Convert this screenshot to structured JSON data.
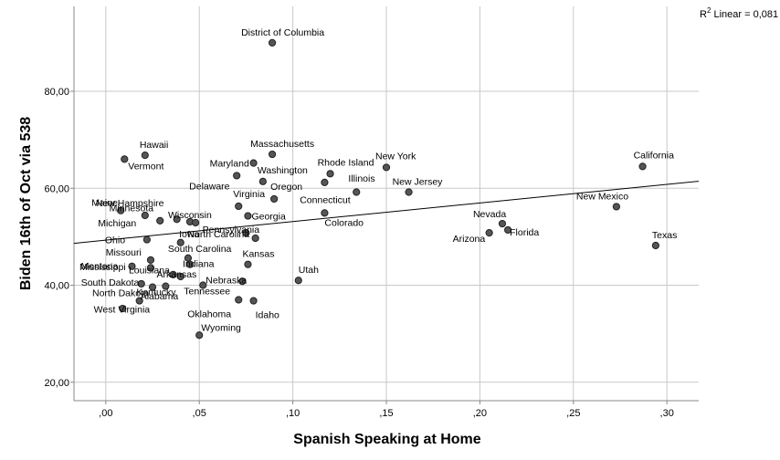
{
  "chart_data": {
    "type": "scatter",
    "title": "",
    "xlabel": "Spanish Speaking at Home",
    "ylabel": "Biden 16th of Oct via 538",
    "xlim": [
      -0.017,
      0.317
    ],
    "ylim": [
      16.2,
      97.5
    ],
    "x_ticks": [
      0.0,
      0.05,
      0.1,
      0.15,
      0.2,
      0.25,
      0.3
    ],
    "x_tick_labels": [
      ",00",
      ",05",
      ",10",
      ",15",
      ",20",
      ",25",
      ",30"
    ],
    "y_ticks": [
      20,
      40,
      60,
      80
    ],
    "y_tick_labels": [
      "20,00",
      "40,00",
      "60,00",
      "80,00"
    ],
    "grid": true,
    "fit_line": {
      "label_prefix": "R",
      "label_sup": "2",
      "label_rest": " Linear = 0,081",
      "intercept": 49.3,
      "slope": 38.3
    },
    "points": [
      {
        "label": "District of Columbia",
        "x": 0.089,
        "y": 90.0
      },
      {
        "label": "Hawaii",
        "x": 0.021,
        "y": 66.8
      },
      {
        "label": "Vermont",
        "x": 0.01,
        "y": 66.0
      },
      {
        "label": "Massachusetts",
        "x": 0.089,
        "y": 67.0
      },
      {
        "label": "Maryland",
        "x": 0.079,
        "y": 65.2
      },
      {
        "label": "Washington",
        "x": 0.084,
        "y": 61.4
      },
      {
        "label": "Delaware",
        "x": 0.07,
        "y": 62.6
      },
      {
        "label": "Oregon",
        "x": 0.09,
        "y": 57.8
      },
      {
        "label": "Rhode Island",
        "x": 0.12,
        "y": 63.0
      },
      {
        "label": "Illinois",
        "x": 0.117,
        "y": 61.2
      },
      {
        "label": "New York",
        "x": 0.15,
        "y": 64.3
      },
      {
        "label": "Connecticut",
        "x": 0.134,
        "y": 59.2
      },
      {
        "label": "New Jersey",
        "x": 0.162,
        "y": 59.2
      },
      {
        "label": "California",
        "x": 0.287,
        "y": 64.5
      },
      {
        "label": "New Mexico",
        "x": 0.273,
        "y": 56.2
      },
      {
        "label": "Texas",
        "x": 0.294,
        "y": 48.2
      },
      {
        "label": "Nevada",
        "x": 0.212,
        "y": 52.7
      },
      {
        "label": "Florida",
        "x": 0.215,
        "y": 51.4
      },
      {
        "label": "Arizona",
        "x": 0.205,
        "y": 50.8
      },
      {
        "label": "Colorado",
        "x": 0.117,
        "y": 54.9
      },
      {
        "label": "Virginia",
        "x": 0.071,
        "y": 56.3
      },
      {
        "label": "North Carolina",
        "x": 0.075,
        "y": 50.8
      },
      {
        "label": "Pennsylvania",
        "x": 0.08,
        "y": 49.7
      },
      {
        "label": "Georgia",
        "x": 0.076,
        "y": 54.3
      },
      {
        "label": "Maine",
        "x": 0.008,
        "y": 55.4
      },
      {
        "label": "New Hampshire",
        "x": 0.021,
        "y": 54.4
      },
      {
        "label": "Michigan",
        "x": 0.029,
        "y": 53.3
      },
      {
        "label": "Minnesota",
        "x": 0.038,
        "y": 53.6
      },
      {
        "label": "Wisconsin",
        "x": 0.045,
        "y": 53.1
      },
      {
        "label": "Iowa",
        "x": 0.048,
        "y": 52.9
      },
      {
        "label": "Ohio",
        "x": 0.022,
        "y": 49.4
      },
      {
        "label": "Missouri",
        "x": 0.04,
        "y": 48.8
      },
      {
        "label": "South Carolina",
        "x": 0.044,
        "y": 45.6
      },
      {
        "label": "Indiana",
        "x": 0.045,
        "y": 44.3
      },
      {
        "label": "Kansas",
        "x": 0.076,
        "y": 44.3
      },
      {
        "label": "Montana",
        "x": 0.014,
        "y": 43.9
      },
      {
        "label": "Mississippi",
        "x": 0.024,
        "y": 45.2
      },
      {
        "label": "Louisiana",
        "x": 0.024,
        "y": 43.6
      },
      {
        "label": "Arkansas",
        "x": 0.036,
        "y": 42.2
      },
      {
        "label": "Alabama",
        "x": 0.04,
        "y": 41.8
      },
      {
        "label": "Utah",
        "x": 0.103,
        "y": 41.0
      },
      {
        "label": "Tennessee",
        "x": 0.073,
        "y": 40.8
      },
      {
        "label": "South Dakota",
        "x": 0.019,
        "y": 40.3
      },
      {
        "label": "North Dakota",
        "x": 0.025,
        "y": 39.6
      },
      {
        "label": "Kentucky",
        "x": 0.032,
        "y": 39.8
      },
      {
        "label": "Nebraska",
        "x": 0.052,
        "y": 40.0
      },
      {
        "label": "Oklahoma",
        "x": 0.071,
        "y": 37.0
      },
      {
        "label": "Idaho",
        "x": 0.079,
        "y": 36.8
      },
      {
        "label": "West Virginia",
        "x": 0.018,
        "y": 36.8
      },
      {
        "label": "North Dakota (pt)",
        "x": 0.009,
        "y": 35.2
      },
      {
        "label": "Wyoming",
        "x": 0.05,
        "y": 29.7
      }
    ]
  }
}
